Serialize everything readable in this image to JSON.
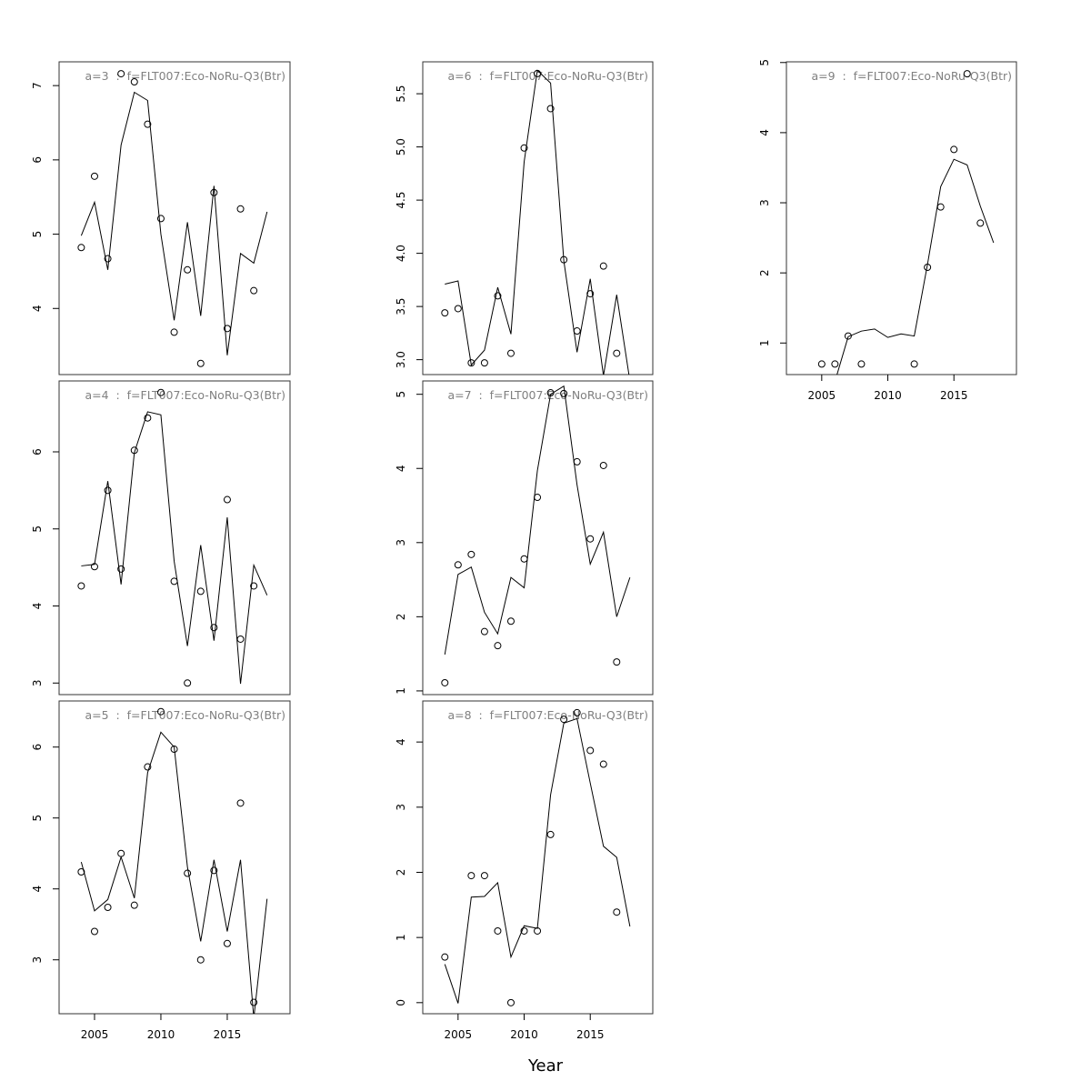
{
  "xlabel": "Year",
  "chart_data": [
    {
      "type": "line",
      "title": "a=3  :  f=FLT007:Eco-NoRu-Q3(Btr)",
      "x": [
        2004,
        2005,
        2006,
        2007,
        2008,
        2009,
        2010,
        2011,
        2012,
        2013,
        2014,
        2015,
        2016,
        2017,
        2018
      ],
      "series": [
        {
          "style": "points",
          "color": "#000000",
          "values": [
            4.82,
            5.78,
            4.67,
            7.16,
            7.05,
            6.48,
            5.21,
            3.68,
            4.52,
            3.26,
            5.56,
            3.73,
            5.34,
            4.24,
            null
          ]
        },
        {
          "style": "line",
          "color": "#000000",
          "values": [
            4.98,
            5.43,
            4.52,
            6.2,
            6.91,
            6.8,
            5.0,
            3.84,
            5.16,
            3.9,
            5.65,
            3.37,
            4.74,
            4.61,
            5.3
          ]
        }
      ],
      "xlim": [
        2002.33,
        2019.73
      ],
      "ylim": [
        3.11,
        7.32
      ],
      "yticks": [
        4,
        5,
        6,
        7
      ]
    },
    {
      "type": "line",
      "title": "a=4  :  f=FLT007:Eco-NoRu-Q3(Btr)",
      "x": [
        2004,
        2005,
        2006,
        2007,
        2008,
        2009,
        2010,
        2011,
        2012,
        2013,
        2014,
        2015,
        2016,
        2017,
        2018
      ],
      "series": [
        {
          "style": "points",
          "color": "#000000",
          "values": [
            4.26,
            4.51,
            5.5,
            4.48,
            6.02,
            6.44,
            6.77,
            4.32,
            3.0,
            4.19,
            3.72,
            5.38,
            3.57,
            4.26,
            null
          ]
        },
        {
          "style": "line",
          "color": "#000000",
          "values": [
            4.52,
            4.54,
            5.62,
            4.28,
            5.99,
            6.52,
            6.48,
            4.58,
            3.48,
            4.79,
            3.55,
            5.15,
            2.99,
            4.53,
            4.14
          ]
        }
      ],
      "xlim": [
        2002.33,
        2019.73
      ],
      "ylim": [
        2.85,
        6.92
      ],
      "yticks": [
        3,
        4,
        5,
        6
      ]
    },
    {
      "type": "line",
      "title": "a=5  :  f=FLT007:Eco-NoRu-Q3(Btr)",
      "x": [
        2004,
        2005,
        2006,
        2007,
        2008,
        2009,
        2010,
        2011,
        2012,
        2013,
        2014,
        2015,
        2016,
        2017,
        2018
      ],
      "series": [
        {
          "style": "points",
          "color": "#000000",
          "values": [
            4.24,
            3.4,
            3.74,
            4.5,
            3.77,
            5.72,
            6.5,
            5.97,
            4.22,
            3.0,
            4.26,
            3.23,
            5.21,
            2.4,
            null
          ]
        },
        {
          "style": "line",
          "color": "#000000",
          "values": [
            4.38,
            3.69,
            3.85,
            4.45,
            3.87,
            5.64,
            6.21,
            6.0,
            4.31,
            3.26,
            4.41,
            3.4,
            4.41,
            2.18,
            3.86
          ]
        }
      ],
      "xlim": [
        2002.33,
        2019.73
      ],
      "ylim": [
        2.24,
        6.65
      ],
      "yticks": [
        3,
        4,
        5,
        6
      ],
      "xticks": [
        2005,
        2010,
        2015
      ]
    },
    {
      "type": "line",
      "title": "a=6  :  f=FLT007:Eco-NoRu-Q3(Btr)",
      "x": [
        2004,
        2005,
        2006,
        2007,
        2008,
        2009,
        2010,
        2011,
        2012,
        2013,
        2014,
        2015,
        2016,
        2017,
        2018
      ],
      "series": [
        {
          "style": "points",
          "color": "#000000",
          "values": [
            3.44,
            3.48,
            2.97,
            2.97,
            3.6,
            3.06,
            4.99,
            5.69,
            5.36,
            3.94,
            3.27,
            3.62,
            3.88,
            3.06,
            null
          ]
        },
        {
          "style": "line",
          "color": "#000000",
          "values": [
            3.71,
            3.74,
            2.95,
            3.09,
            3.68,
            3.24,
            4.86,
            5.72,
            5.6,
            3.93,
            3.07,
            3.76,
            2.85,
            3.61,
            2.8
          ]
        }
      ],
      "xlim": [
        2002.33,
        2019.73
      ],
      "ylim": [
        2.86,
        5.8
      ],
      "yticks": [
        {
          "value": 3,
          "label": "3.0"
        },
        3.5,
        {
          "value": 4,
          "label": "4.0"
        },
        4.5,
        {
          "value": 5,
          "label": "5.0"
        },
        5.5
      ]
    },
    {
      "type": "line",
      "title": "a=7  :  f=FLT007:Eco-NoRu-Q3(Btr)",
      "x": [
        2004,
        2005,
        2006,
        2007,
        2008,
        2009,
        2010,
        2011,
        2012,
        2013,
        2014,
        2015,
        2016,
        2017,
        2018
      ],
      "series": [
        {
          "style": "points",
          "color": "#000000",
          "values": [
            1.11,
            2.7,
            2.84,
            1.8,
            1.61,
            1.94,
            2.78,
            3.61,
            5.02,
            5.01,
            4.09,
            3.05,
            4.04,
            1.39,
            null
          ]
        },
        {
          "style": "line",
          "color": "#000000",
          "values": [
            1.49,
            2.57,
            2.67,
            2.06,
            1.77,
            2.53,
            2.39,
            3.97,
            5.0,
            5.11,
            3.78,
            2.71,
            3.14,
            2.0,
            2.53
          ]
        }
      ],
      "xlim": [
        2002.33,
        2019.73
      ],
      "ylim": [
        0.95,
        5.18
      ],
      "yticks": [
        1,
        2,
        3,
        4,
        5
      ]
    },
    {
      "type": "line",
      "title": "a=8  :  f=FLT007:Eco-NoRu-Q3(Btr)",
      "x": [
        2004,
        2005,
        2006,
        2007,
        2008,
        2009,
        2010,
        2011,
        2012,
        2013,
        2014,
        2015,
        2016,
        2017,
        2018
      ],
      "series": [
        {
          "style": "points",
          "color": "#000000",
          "values": [
            0.7,
            null,
            1.95,
            1.95,
            1.1,
            0,
            1.1,
            1.1,
            2.58,
            4.35,
            4.45,
            3.87,
            3.66,
            1.39,
            null
          ]
        },
        {
          "style": "line",
          "color": "#000000",
          "values": [
            0.59,
            -0.01,
            1.62,
            1.63,
            1.84,
            0.7,
            1.18,
            1.14,
            3.19,
            4.29,
            4.36,
            3.37,
            2.4,
            2.23,
            1.17
          ]
        }
      ],
      "xlim": [
        2002.33,
        2019.73
      ],
      "ylim": [
        -0.17,
        4.63
      ],
      "yticks": [
        0,
        1,
        2,
        3,
        4
      ],
      "xticks": [
        2005,
        2010,
        2015
      ]
    },
    {
      "type": "line",
      "title": "a=9  :  f=FLT007:Eco-NoRu-Q3(Btr)",
      "x": [
        2004,
        2005,
        2006,
        2007,
        2008,
        2009,
        2010,
        2011,
        2012,
        2013,
        2014,
        2015,
        2016,
        2017,
        2018
      ],
      "series": [
        {
          "style": "points",
          "color": "#000000",
          "values": [
            null,
            0.7,
            0.7,
            1.1,
            0.7,
            null,
            null,
            null,
            0.7,
            2.08,
            2.94,
            3.76,
            4.84,
            2.71,
            null
          ]
        },
        {
          "style": "line",
          "color": "#000000",
          "values": [
            null,
            null,
            0.45,
            1.09,
            1.17,
            1.2,
            1.08,
            1.13,
            1.1,
            2.12,
            3.23,
            3.62,
            3.54,
            2.95,
            2.43
          ]
        }
      ],
      "xlim": [
        2002.33,
        2019.73
      ],
      "ylim": [
        0.55,
        5.01
      ],
      "yticks": [
        1,
        2,
        3,
        4,
        5
      ],
      "xticks": [
        2005,
        2010,
        2015
      ]
    }
  ]
}
